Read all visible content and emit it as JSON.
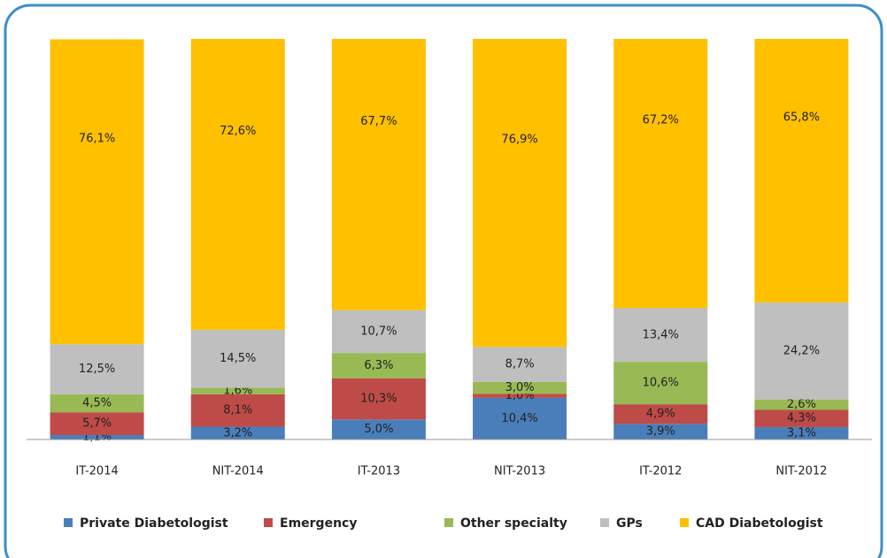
{
  "chart_data": {
    "type": "stacked_bar",
    "categories": [
      "IT-2014",
      "NIT-2014",
      "IT-2013",
      "NIT-2013",
      "IT-2012",
      "NIT-2012"
    ],
    "ylim": [
      0,
      100
    ],
    "series": [
      {
        "name": "Private Diabetologist",
        "color": "#4a7ebb",
        "values": [
          1.1,
          3.2,
          5.0,
          10.4,
          3.9,
          3.1
        ],
        "value_labels": [
          "1,1%",
          "3,2%",
          "5,0%",
          "10,4%",
          "3,9%",
          "3,1%"
        ]
      },
      {
        "name": "Emergency",
        "color": "#be4b48",
        "values": [
          5.7,
          8.1,
          10.3,
          1.0,
          4.9,
          4.3
        ],
        "value_labels": [
          "5,7%",
          "8,1%",
          "10,3%",
          "1,0%",
          "4,9%",
          "4,3%"
        ]
      },
      {
        "name": "Other specialty",
        "color": "#98b954",
        "values": [
          4.5,
          1.6,
          6.3,
          3.0,
          10.6,
          2.6
        ],
        "value_labels": [
          "4,5%",
          "1,6%",
          "6,3%",
          "3,0%",
          "10,6%",
          "2,6%"
        ]
      },
      {
        "name": "GPs",
        "color": "#bfbfbf",
        "values": [
          12.5,
          14.5,
          10.7,
          8.7,
          13.4,
          24.2
        ],
        "value_labels": [
          "12,5%",
          "14,5%",
          "10,7%",
          "8,7%",
          "13,4%",
          "24,2%"
        ]
      },
      {
        "name": "CAD Diabetologist",
        "color": "#ffc000",
        "values": [
          76.1,
          72.6,
          67.7,
          76.9,
          67.2,
          65.8
        ],
        "value_labels": [
          "76,1%",
          "72,6%",
          "67,7%",
          "76,9%",
          "67,2%",
          "65,8%"
        ]
      }
    ]
  }
}
